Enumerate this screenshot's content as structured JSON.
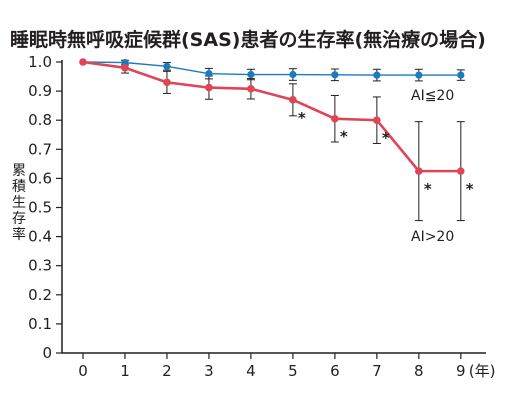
{
  "chart_data": {
    "type": "line",
    "title": "睡眠時無呼吸症候群(SAS)患者の生存率(無治療の場合)",
    "ylabel": "累積生存率",
    "xunit": "(年)",
    "x": [
      0,
      1,
      2,
      3,
      4,
      5,
      6,
      7,
      8,
      9
    ],
    "xlim": [
      -0.5,
      9.6
    ],
    "ylim": [
      0,
      1.0
    ],
    "yticks": [
      "0",
      "0.1",
      "0.2",
      "0.3",
      "0.4",
      "0.5",
      "0.6",
      "0.7",
      "0.8",
      "0.9",
      "1.0"
    ],
    "xticks": [
      "0",
      "1",
      "2",
      "3",
      "4",
      "5",
      "6",
      "7",
      "8",
      "9"
    ],
    "grid": false,
    "series": [
      {
        "name": "AI≦20",
        "color": "#1a7cbf",
        "values": [
          1.0,
          0.998,
          0.985,
          0.96,
          0.957,
          0.957,
          0.956,
          0.955,
          0.955,
          0.955
        ],
        "err": [
          0,
          0.008,
          0.013,
          0.018,
          0.018,
          0.02,
          0.02,
          0.02,
          0.02,
          0.018
        ]
      },
      {
        "name": "AI>20",
        "color": "#e04557",
        "values": [
          1.0,
          0.98,
          0.93,
          0.912,
          0.908,
          0.87,
          0.805,
          0.8,
          0.625,
          0.625
        ],
        "err": [
          0,
          0.018,
          0.038,
          0.04,
          0.035,
          0.055,
          0.08,
          0.08,
          0.17,
          0.17
        ]
      }
    ],
    "significance_marks": [
      {
        "series": 1,
        "x": 5,
        "text": "*"
      },
      {
        "series": 1,
        "x": 6,
        "text": "*"
      },
      {
        "series": 1,
        "x": 7,
        "text": "*"
      },
      {
        "series": 1,
        "x": 8,
        "text": "*"
      },
      {
        "series": 1,
        "x": 9,
        "text": "*"
      }
    ]
  }
}
